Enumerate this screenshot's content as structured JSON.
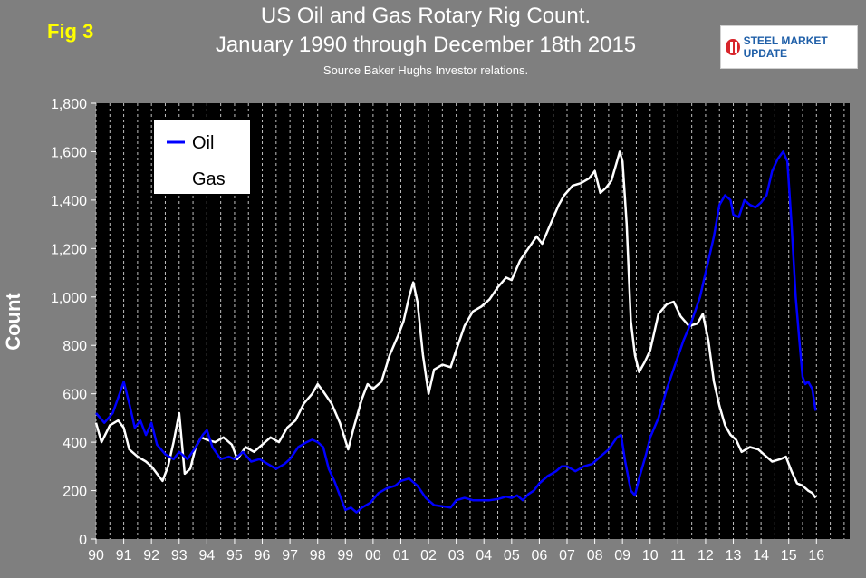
{
  "fig_label": "Fig 3",
  "logo": {
    "brand": "STEEL MARKET UPDATE",
    "mark_icon": "smu-logo-icon"
  },
  "colors": {
    "oil": "#0000ff",
    "gas": "#ffffff",
    "plot_bg": "#000000",
    "page_bg": "#7f7f7f",
    "fig_label": "#ffff00"
  },
  "chart_data": {
    "type": "line",
    "title": "US Oil and Gas Rotary Rig Count.",
    "subtitle": "January 1990 through December 18th 2015",
    "source": "Source Baker Hughs Investor relations.",
    "xlabel": "",
    "ylabel": "Count",
    "ylim": [
      0,
      1800
    ],
    "yticks": [
      0,
      200,
      400,
      600,
      800,
      1000,
      1200,
      1400,
      1600,
      1800
    ],
    "ytick_labels": [
      "0",
      "200",
      "400",
      "600",
      "800",
      "1,000",
      "1,200",
      "1,400",
      "1,600",
      "1,800"
    ],
    "xlim": [
      1990,
      2017.2
    ],
    "xticks": [
      "90",
      "91",
      "92",
      "93",
      "94",
      "95",
      "96",
      "97",
      "98",
      "99",
      "00",
      "01",
      "02",
      "03",
      "04",
      "05",
      "06",
      "07",
      "08",
      "09",
      "10",
      "11",
      "12",
      "13",
      "14",
      "15",
      "16"
    ],
    "grid": "vertical-dashed",
    "legend": "top-left",
    "series": [
      {
        "name": "Oil",
        "points": [
          [
            1990.0,
            520
          ],
          [
            1990.3,
            480
          ],
          [
            1990.6,
            520
          ],
          [
            1990.85,
            600
          ],
          [
            1991.0,
            650
          ],
          [
            1991.2,
            560
          ],
          [
            1991.4,
            460
          ],
          [
            1991.6,
            490
          ],
          [
            1991.8,
            430
          ],
          [
            1992.0,
            480
          ],
          [
            1992.2,
            390
          ],
          [
            1992.5,
            350
          ],
          [
            1992.8,
            330
          ],
          [
            1993.0,
            360
          ],
          [
            1993.3,
            330
          ],
          [
            1993.6,
            380
          ],
          [
            1993.85,
            430
          ],
          [
            1994.0,
            450
          ],
          [
            1994.2,
            380
          ],
          [
            1994.5,
            330
          ],
          [
            1994.8,
            340
          ],
          [
            1995.0,
            330
          ],
          [
            1995.3,
            360
          ],
          [
            1995.6,
            320
          ],
          [
            1995.9,
            330
          ],
          [
            1996.2,
            310
          ],
          [
            1996.5,
            290
          ],
          [
            1996.8,
            310
          ],
          [
            1997.0,
            330
          ],
          [
            1997.3,
            380
          ],
          [
            1997.6,
            400
          ],
          [
            1997.8,
            410
          ],
          [
            1998.0,
            400
          ],
          [
            1998.2,
            380
          ],
          [
            1998.4,
            290
          ],
          [
            1998.6,
            240
          ],
          [
            1998.8,
            180
          ],
          [
            1999.0,
            120
          ],
          [
            1999.2,
            130
          ],
          [
            1999.4,
            110
          ],
          [
            1999.6,
            130
          ],
          [
            1999.9,
            150
          ],
          [
            2000.2,
            190
          ],
          [
            2000.5,
            210
          ],
          [
            2000.8,
            220
          ],
          [
            2001.0,
            240
          ],
          [
            2001.3,
            250
          ],
          [
            2001.6,
            220
          ],
          [
            2001.9,
            170
          ],
          [
            2002.2,
            140
          ],
          [
            2002.5,
            135
          ],
          [
            2002.8,
            130
          ],
          [
            2003.0,
            160
          ],
          [
            2003.3,
            170
          ],
          [
            2003.6,
            160
          ],
          [
            2003.9,
            160
          ],
          [
            2004.2,
            160
          ],
          [
            2004.5,
            165
          ],
          [
            2004.8,
            175
          ],
          [
            2005.0,
            170
          ],
          [
            2005.2,
            180
          ],
          [
            2005.4,
            160
          ],
          [
            2005.6,
            185
          ],
          [
            2005.8,
            200
          ],
          [
            2006.0,
            230
          ],
          [
            2006.3,
            260
          ],
          [
            2006.6,
            280
          ],
          [
            2006.8,
            300
          ],
          [
            2007.0,
            300
          ],
          [
            2007.3,
            280
          ],
          [
            2007.6,
            300
          ],
          [
            2007.9,
            310
          ],
          [
            2008.2,
            340
          ],
          [
            2008.5,
            370
          ],
          [
            2008.8,
            420
          ],
          [
            2008.95,
            430
          ],
          [
            2009.1,
            320
          ],
          [
            2009.3,
            200
          ],
          [
            2009.45,
            180
          ],
          [
            2009.6,
            250
          ],
          [
            2009.85,
            350
          ],
          [
            2010.0,
            420
          ],
          [
            2010.3,
            500
          ],
          [
            2010.6,
            620
          ],
          [
            2010.9,
            720
          ],
          [
            2011.2,
            820
          ],
          [
            2011.5,
            900
          ],
          [
            2011.8,
            1000
          ],
          [
            2012.1,
            1150
          ],
          [
            2012.3,
            1250
          ],
          [
            2012.5,
            1380
          ],
          [
            2012.7,
            1420
          ],
          [
            2012.9,
            1400
          ],
          [
            2013.0,
            1340
          ],
          [
            2013.2,
            1330
          ],
          [
            2013.4,
            1400
          ],
          [
            2013.6,
            1380
          ],
          [
            2013.8,
            1370
          ],
          [
            2014.0,
            1390
          ],
          [
            2014.2,
            1420
          ],
          [
            2014.4,
            1520
          ],
          [
            2014.6,
            1570
          ],
          [
            2014.8,
            1600
          ],
          [
            2014.95,
            1560
          ],
          [
            2015.1,
            1300
          ],
          [
            2015.25,
            1000
          ],
          [
            2015.4,
            800
          ],
          [
            2015.5,
            670
          ],
          [
            2015.6,
            640
          ],
          [
            2015.7,
            650
          ],
          [
            2015.85,
            620
          ],
          [
            2015.97,
            530
          ]
        ]
      },
      {
        "name": "Gas",
        "points": [
          [
            1990.0,
            480
          ],
          [
            1990.2,
            400
          ],
          [
            1990.5,
            470
          ],
          [
            1990.8,
            490
          ],
          [
            1991.0,
            460
          ],
          [
            1991.2,
            370
          ],
          [
            1991.5,
            340
          ],
          [
            1991.8,
            320
          ],
          [
            1992.0,
            300
          ],
          [
            1992.2,
            270
          ],
          [
            1992.4,
            240
          ],
          [
            1992.6,
            300
          ],
          [
            1992.8,
            400
          ],
          [
            1993.0,
            520
          ],
          [
            1993.2,
            270
          ],
          [
            1993.4,
            290
          ],
          [
            1993.6,
            380
          ],
          [
            1993.8,
            420
          ],
          [
            1994.0,
            410
          ],
          [
            1994.3,
            400
          ],
          [
            1994.6,
            420
          ],
          [
            1994.9,
            390
          ],
          [
            1995.1,
            330
          ],
          [
            1995.4,
            380
          ],
          [
            1995.7,
            360
          ],
          [
            1996.0,
            390
          ],
          [
            1996.3,
            420
          ],
          [
            1996.6,
            400
          ],
          [
            1996.9,
            460
          ],
          [
            1997.2,
            490
          ],
          [
            1997.5,
            560
          ],
          [
            1997.8,
            600
          ],
          [
            1998.0,
            640
          ],
          [
            1998.2,
            610
          ],
          [
            1998.5,
            560
          ],
          [
            1998.8,
            480
          ],
          [
            1999.1,
            370
          ],
          [
            1999.3,
            460
          ],
          [
            1999.6,
            580
          ],
          [
            1999.8,
            640
          ],
          [
            2000.0,
            620
          ],
          [
            2000.3,
            650
          ],
          [
            2000.6,
            760
          ],
          [
            2000.9,
            840
          ],
          [
            2001.1,
            900
          ],
          [
            2001.3,
            1000
          ],
          [
            2001.45,
            1060
          ],
          [
            2001.6,
            980
          ],
          [
            2001.8,
            760
          ],
          [
            2002.0,
            600
          ],
          [
            2002.2,
            700
          ],
          [
            2002.5,
            720
          ],
          [
            2002.8,
            710
          ],
          [
            2003.0,
            780
          ],
          [
            2003.3,
            880
          ],
          [
            2003.6,
            940
          ],
          [
            2003.9,
            960
          ],
          [
            2004.2,
            990
          ],
          [
            2004.5,
            1040
          ],
          [
            2004.8,
            1080
          ],
          [
            2005.0,
            1070
          ],
          [
            2005.3,
            1150
          ],
          [
            2005.6,
            1200
          ],
          [
            2005.9,
            1250
          ],
          [
            2006.1,
            1220
          ],
          [
            2006.4,
            1300
          ],
          [
            2006.7,
            1380
          ],
          [
            2006.9,
            1420
          ],
          [
            2007.2,
            1460
          ],
          [
            2007.5,
            1470
          ],
          [
            2007.8,
            1490
          ],
          [
            2008.0,
            1520
          ],
          [
            2008.2,
            1430
          ],
          [
            2008.4,
            1450
          ],
          [
            2008.6,
            1480
          ],
          [
            2008.8,
            1560
          ],
          [
            2008.9,
            1600
          ],
          [
            2009.0,
            1560
          ],
          [
            2009.15,
            1300
          ],
          [
            2009.3,
            900
          ],
          [
            2009.45,
            760
          ],
          [
            2009.6,
            690
          ],
          [
            2009.8,
            730
          ],
          [
            2010.0,
            780
          ],
          [
            2010.3,
            930
          ],
          [
            2010.6,
            970
          ],
          [
            2010.85,
            980
          ],
          [
            2011.1,
            920
          ],
          [
            2011.4,
            880
          ],
          [
            2011.7,
            890
          ],
          [
            2011.9,
            930
          ],
          [
            2012.1,
            820
          ],
          [
            2012.3,
            650
          ],
          [
            2012.5,
            550
          ],
          [
            2012.7,
            470
          ],
          [
            2012.9,
            430
          ],
          [
            2013.1,
            410
          ],
          [
            2013.3,
            360
          ],
          [
            2013.6,
            380
          ],
          [
            2013.9,
            370
          ],
          [
            2014.1,
            350
          ],
          [
            2014.4,
            320
          ],
          [
            2014.7,
            330
          ],
          [
            2014.9,
            340
          ],
          [
            2015.1,
            280
          ],
          [
            2015.3,
            230
          ],
          [
            2015.5,
            220
          ],
          [
            2015.7,
            200
          ],
          [
            2015.85,
            190
          ],
          [
            2015.97,
            170
          ]
        ]
      }
    ]
  }
}
